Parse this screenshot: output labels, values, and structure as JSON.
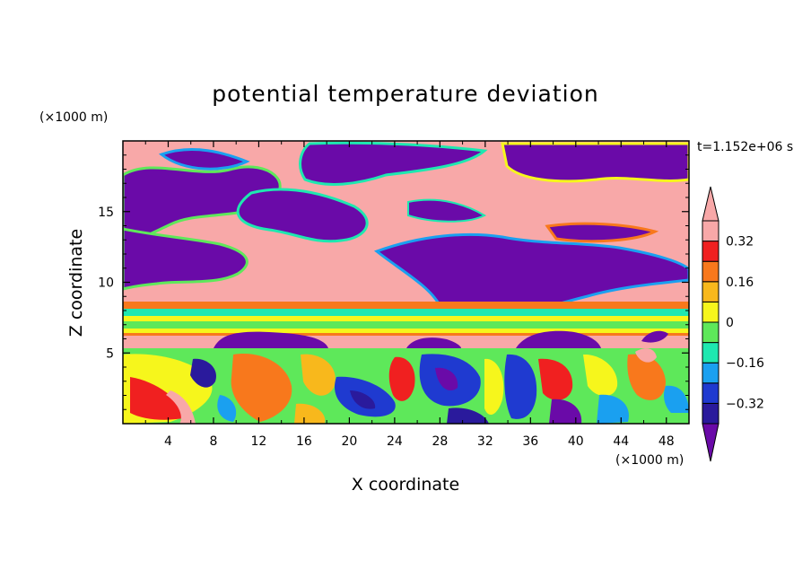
{
  "chart_data": {
    "type": "heatmap",
    "title": "potential temperature deviation",
    "time_label": "t=1.152e+06 s",
    "xlabel": "X coordinate",
    "ylabel": "Z coordinate",
    "x_unit": "(×1000 m)",
    "y_unit": "(×1000 m)",
    "xlim": [
      0,
      50
    ],
    "ylim": [
      0,
      20
    ],
    "x_ticks": [
      "4",
      "8",
      "12",
      "16",
      "20",
      "24",
      "28",
      "32",
      "36",
      "40",
      "44",
      "48"
    ],
    "y_ticks": [
      "5",
      "10",
      "15"
    ],
    "colorbar": {
      "levels": [
        -0.4,
        -0.32,
        -0.24,
        -0.16,
        -0.08,
        0,
        0.08,
        0.16,
        0.24,
        0.32,
        0.4
      ],
      "labels": [
        "0.32",
        "0.16",
        "0",
        "−0.16",
        "−0.32"
      ],
      "label_values": [
        0.32,
        0.16,
        0,
        -0.16,
        -0.32
      ],
      "colors": [
        "#6a0aa8",
        "#2a1a9c",
        "#1f3ad0",
        "#1aa0f0",
        "#1ee8b0",
        "#5ee85a",
        "#f6f61c",
        "#f8b81c",
        "#f8781c",
        "#f02020",
        "#f8a8a8"
      ],
      "extend": "both"
    }
  }
}
